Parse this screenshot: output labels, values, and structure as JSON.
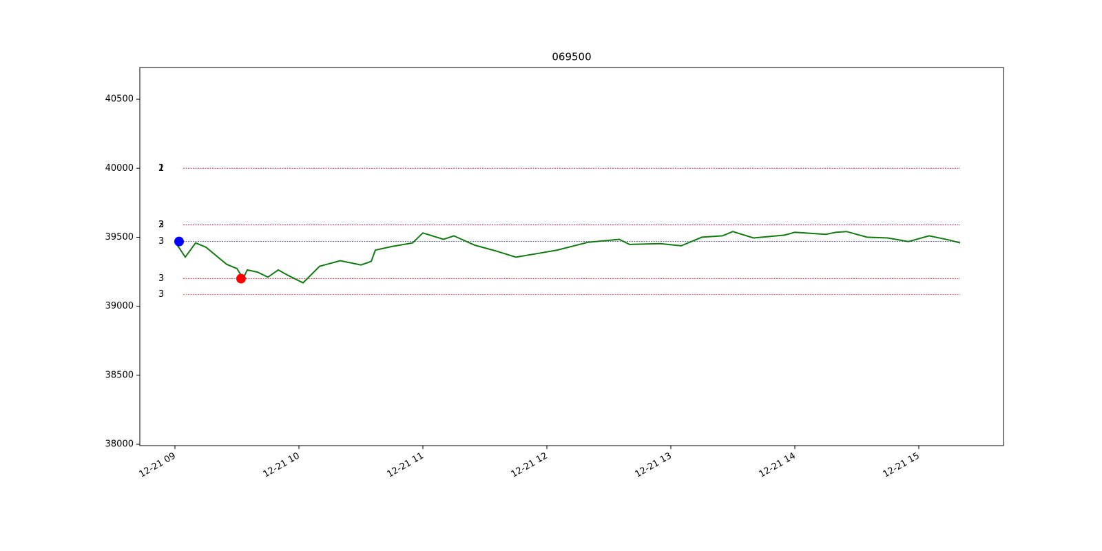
{
  "chart_data": {
    "type": "line",
    "title": "069500",
    "x": [
      540,
      545,
      550,
      555,
      560,
      565,
      570,
      573,
      575,
      580,
      585,
      590,
      595,
      602,
      610,
      620,
      630,
      635,
      637,
      645,
      655,
      660,
      670,
      675,
      685,
      695,
      705,
      715,
      725,
      740,
      755,
      760,
      775,
      785,
      795,
      805,
      810,
      820,
      835,
      840,
      845,
      855,
      860,
      865,
      875,
      885,
      895,
      905,
      915,
      920
    ],
    "series": [
      {
        "color": "#107a10",
        "values": [
          39469,
          39356,
          39459,
          39428,
          39366,
          39304,
          39273,
          39201,
          39263,
          39247,
          39211,
          39263,
          39222,
          39170,
          39289,
          39330,
          39299,
          39325,
          39407,
          39433,
          39459,
          39531,
          39485,
          39510,
          39443,
          39402,
          39356,
          39381,
          39407,
          39464,
          39485,
          39448,
          39454,
          39438,
          39500,
          39510,
          39541,
          39495,
          39515,
          39536,
          39531,
          39521,
          39536,
          39541,
          39500,
          39495,
          39469,
          39510,
          39479,
          39459
        ]
      }
    ],
    "hlines": [
      {
        "value": 40000,
        "label": "1",
        "color": "#0000ff"
      },
      {
        "value": 40000,
        "label": "2",
        "color": "#ff0000"
      },
      {
        "value": 39590,
        "label": "2",
        "color": "#0000ff"
      },
      {
        "value": 39590,
        "label": "3",
        "color": "#ff0000"
      },
      {
        "value": 39469,
        "label": "3",
        "color": "#000080"
      },
      {
        "value": 39200,
        "label": "3",
        "color": "#ff0000"
      },
      {
        "value": 39085,
        "label": "3",
        "color": "#ff0000"
      }
    ],
    "hline_xlim": [
      544,
      920
    ],
    "markers": [
      {
        "x": 542,
        "y": 39469,
        "color": "#0000ff"
      },
      {
        "x": 572,
        "y": 39200,
        "color": "#ff0000"
      }
    ],
    "xlim": [
      523,
      941
    ],
    "xticks": [
      {
        "value": 540,
        "label": "12-21 09"
      },
      {
        "value": 600,
        "label": "12-21 10"
      },
      {
        "value": 660,
        "label": "12-21 11"
      },
      {
        "value": 720,
        "label": "12-21 12"
      },
      {
        "value": 780,
        "label": "12-21 13"
      },
      {
        "value": 840,
        "label": "12-21 14"
      },
      {
        "value": 900,
        "label": "12-21 15"
      }
    ],
    "ylim": [
      37990,
      40730
    ],
    "yticks": [
      38000,
      38500,
      39000,
      39500,
      40000,
      40500
    ]
  }
}
